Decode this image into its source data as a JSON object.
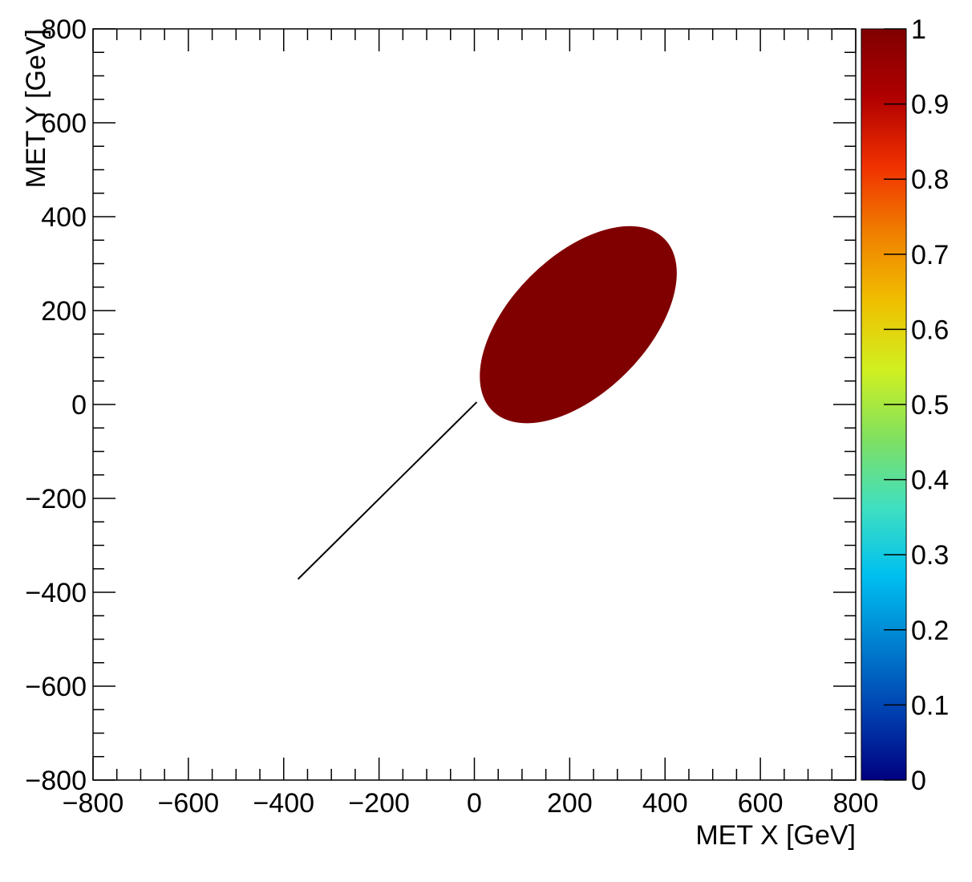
{
  "chart_data": {
    "type": "heatmap",
    "title": "",
    "xlabel": "MET X [GeV]",
    "ylabel": "MET Y [GeV]",
    "xlim": [
      -800,
      800
    ],
    "ylim": [
      -800,
      800
    ],
    "x_ticks": [
      "−800",
      "−600",
      "−400",
      "−200",
      "0",
      "200",
      "400",
      "600",
      "800"
    ],
    "y_ticks": [
      "−800",
      "−600",
      "−400",
      "−200",
      "0",
      "200",
      "400",
      "600",
      "800"
    ],
    "x_tick_values": [
      -800,
      -600,
      -400,
      -200,
      0,
      200,
      400,
      600,
      800
    ],
    "y_tick_values": [
      -800,
      -600,
      -400,
      -200,
      0,
      200,
      400,
      600,
      800
    ],
    "colorbar": {
      "range": [
        0,
        1
      ],
      "ticks": [
        "0",
        "0.1",
        "0.2",
        "0.3",
        "0.4",
        "0.5",
        "0.6",
        "0.7",
        "0.8",
        "0.9",
        "1"
      ],
      "tick_values": [
        0,
        0.1,
        0.2,
        0.3,
        0.4,
        0.5,
        0.6,
        0.7,
        0.8,
        0.9,
        1
      ],
      "palette": [
        "#000080",
        "#0040b0",
        "#0080d0",
        "#00c0f0",
        "#40e0c0",
        "#80e060",
        "#d0f020",
        "#f0c000",
        "#f08000",
        "#f03000",
        "#b00000",
        "#800000"
      ]
    },
    "regions": [
      {
        "kind": "filled-ellipse",
        "value": 1,
        "color": "#800000",
        "center": [
          218,
          170
        ],
        "semi_axes": [
          255,
          145
        ],
        "rotation_deg": 45
      },
      {
        "kind": "line",
        "color": "#000000",
        "from": [
          -370,
          -372
        ],
        "to": [
          5,
          5
        ]
      }
    ],
    "grid": false
  }
}
